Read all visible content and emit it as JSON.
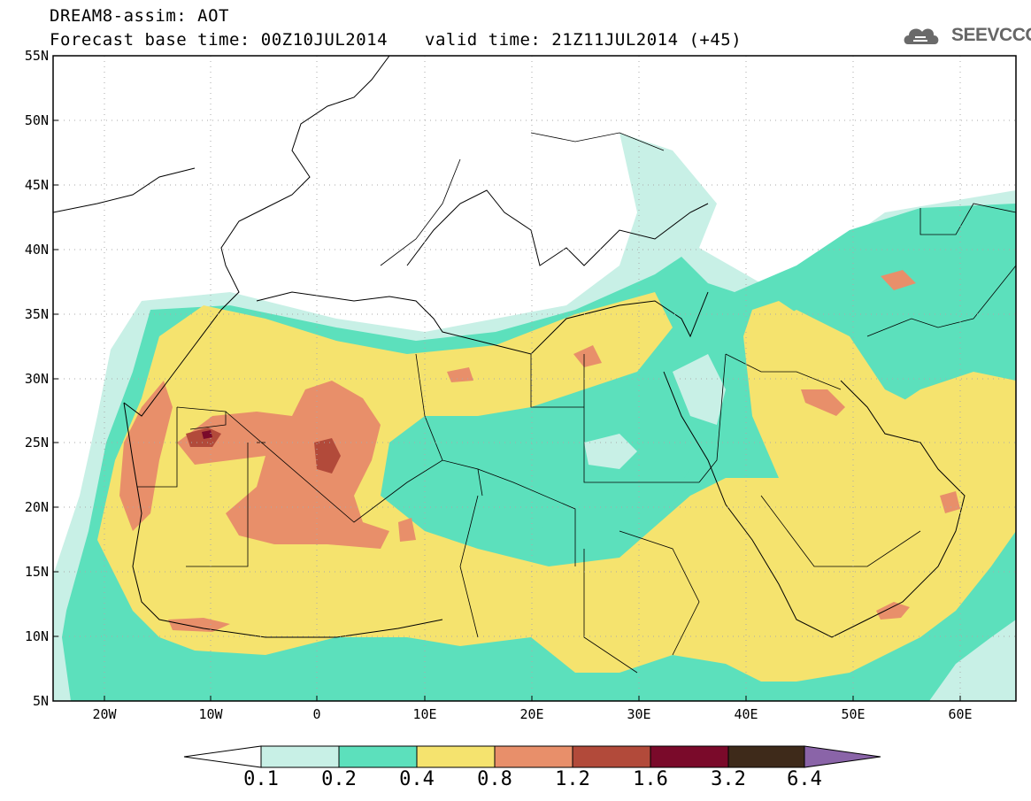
{
  "header": {
    "title": "DREAM8-assim: AOT",
    "base_time": "Forecast base time: 00Z10JUL2014",
    "valid_time": "valid time: 21Z11JUL2014 (+45)",
    "logo_text": "SEEVCCC"
  },
  "map": {
    "lat_labels": [
      "55N",
      "50N",
      "45N",
      "40N",
      "35N",
      "30N",
      "25N",
      "20N",
      "15N",
      "10N",
      "5N"
    ],
    "lon_labels": [
      "20W",
      "10W",
      "0",
      "10E",
      "20E",
      "30E",
      "40E",
      "50E",
      "60E"
    ],
    "extent": {
      "lon": [
        -25,
        65
      ],
      "lat": [
        5,
        55
      ]
    }
  },
  "colorbar": {
    "labels": [
      "0.1",
      "0.2",
      "0.4",
      "0.8",
      "1.2",
      "1.6",
      "3.2",
      "6.4"
    ],
    "colors": [
      "#ffffff",
      "#c8f0e6",
      "#5ce0bc",
      "#f5e36e",
      "#e88f6a",
      "#b24a3a",
      "#7a0a2a",
      "#3e2a1a",
      "#8a64a8"
    ]
  }
}
